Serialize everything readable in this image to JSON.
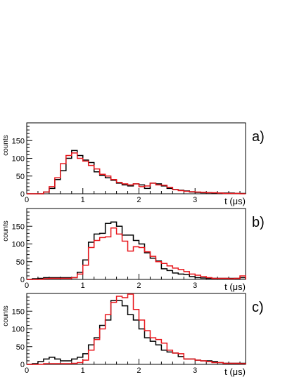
{
  "chart_data": [
    {
      "type": "step",
      "panel_label": "a)",
      "ylabel": "counts",
      "xlabel": "t (μs)",
      "xlim": [
        0,
        3.9
      ],
      "ylim": [
        0,
        200
      ],
      "xticks": [
        "0",
        "1",
        "2",
        "3"
      ],
      "yticks": [
        "0",
        "50",
        "100",
        "150"
      ],
      "bin_edges": [
        0,
        0.1,
        0.2,
        0.3,
        0.4,
        0.5,
        0.6,
        0.7,
        0.8,
        0.9,
        1.0,
        1.1,
        1.2,
        1.3,
        1.4,
        1.5,
        1.6,
        1.7,
        1.8,
        1.9,
        2.0,
        2.1,
        2.2,
        2.3,
        2.4,
        2.5,
        2.6,
        2.7,
        2.8,
        2.9,
        3.0,
        3.1,
        3.2,
        3.3,
        3.4,
        3.5,
        3.6,
        3.7,
        3.8,
        3.9
      ],
      "series": [
        {
          "color": "#000000",
          "values": [
            0,
            0,
            0,
            5,
            15,
            40,
            65,
            100,
            122,
            108,
            95,
            88,
            62,
            52,
            45,
            38,
            30,
            25,
            22,
            28,
            25,
            15,
            30,
            28,
            22,
            15,
            12,
            10,
            8,
            5,
            4,
            3,
            3,
            2,
            2,
            2,
            2,
            1,
            1
          ]
        },
        {
          "color": "#e8151b",
          "values": [
            0,
            0,
            0,
            5,
            20,
            45,
            85,
            108,
            115,
            100,
            92,
            80,
            70,
            55,
            50,
            40,
            32,
            28,
            25,
            28,
            20,
            22,
            30,
            25,
            24,
            18,
            12,
            9,
            7,
            6,
            5,
            4,
            3,
            3,
            2,
            1,
            1,
            1,
            0
          ]
        }
      ]
    },
    {
      "type": "step",
      "panel_label": "b)",
      "ylabel": "counts",
      "xlabel": "t (μs)",
      "xlim": [
        0,
        3.9
      ],
      "ylim": [
        0,
        200
      ],
      "xticks": [
        "0",
        "1",
        "2",
        "3"
      ],
      "yticks": [
        "0",
        "50",
        "100",
        "150"
      ],
      "bin_edges": [
        0,
        0.1,
        0.2,
        0.3,
        0.4,
        0.5,
        0.6,
        0.7,
        0.8,
        0.9,
        1.0,
        1.1,
        1.2,
        1.3,
        1.4,
        1.5,
        1.6,
        1.7,
        1.8,
        1.9,
        2.0,
        2.1,
        2.2,
        2.3,
        2.4,
        2.5,
        2.6,
        2.7,
        2.8,
        2.9,
        3.0,
        3.1,
        3.2,
        3.3,
        3.4,
        3.5,
        3.6,
        3.7,
        3.8,
        3.9
      ],
      "series": [
        {
          "color": "#000000",
          "values": [
            0,
            2,
            3,
            5,
            5,
            5,
            5,
            5,
            5,
            20,
            55,
            105,
            128,
            130,
            158,
            162,
            150,
            125,
            125,
            110,
            100,
            75,
            60,
            52,
            30,
            25,
            18,
            15,
            14,
            8,
            5,
            4,
            3,
            3,
            3,
            3,
            3,
            3,
            5
          ]
        },
        {
          "color": "#e8151b",
          "values": [
            0,
            0,
            0,
            2,
            3,
            3,
            3,
            3,
            5,
            15,
            40,
            90,
            110,
            118,
            120,
            145,
            128,
            108,
            80,
            92,
            90,
            78,
            65,
            50,
            45,
            38,
            32,
            28,
            22,
            15,
            12,
            8,
            5,
            3,
            3,
            3,
            2,
            3,
            10
          ]
        }
      ]
    },
    {
      "type": "step",
      "panel_label": "c)",
      "ylabel": "counts",
      "xlabel": "t (μs)",
      "xlim": [
        0,
        3.9
      ],
      "ylim": [
        0,
        200
      ],
      "xticks": [
        "0",
        "1",
        "2",
        "3"
      ],
      "yticks": [
        "0",
        "50",
        "100",
        "150"
      ],
      "bin_edges": [
        0,
        0.1,
        0.2,
        0.3,
        0.4,
        0.5,
        0.6,
        0.7,
        0.8,
        0.9,
        1.0,
        1.1,
        1.2,
        1.3,
        1.4,
        1.5,
        1.6,
        1.7,
        1.8,
        1.9,
        2.0,
        2.1,
        2.2,
        2.3,
        2.4,
        2.5,
        2.6,
        2.7,
        2.8,
        2.9,
        3.0,
        3.1,
        3.2,
        3.3,
        3.4,
        3.5,
        3.6,
        3.7,
        3.8,
        3.9
      ],
      "series": [
        {
          "color": "#000000",
          "values": [
            0,
            2,
            8,
            15,
            20,
            15,
            10,
            10,
            15,
            20,
            30,
            55,
            75,
            110,
            125,
            180,
            180,
            165,
            140,
            125,
            100,
            75,
            65,
            55,
            40,
            35,
            32,
            22,
            15,
            15,
            12,
            10,
            10,
            8,
            5,
            3,
            3,
            3,
            3
          ]
        },
        {
          "color": "#e8151b",
          "values": [
            0,
            0,
            0,
            2,
            2,
            2,
            2,
            2,
            3,
            5,
            12,
            40,
            70,
            100,
            140,
            175,
            192,
            188,
            198,
            155,
            125,
            95,
            75,
            70,
            60,
            40,
            32,
            30,
            15,
            15,
            12,
            10,
            8,
            5,
            5,
            3,
            3,
            3,
            2
          ]
        }
      ]
    }
  ]
}
